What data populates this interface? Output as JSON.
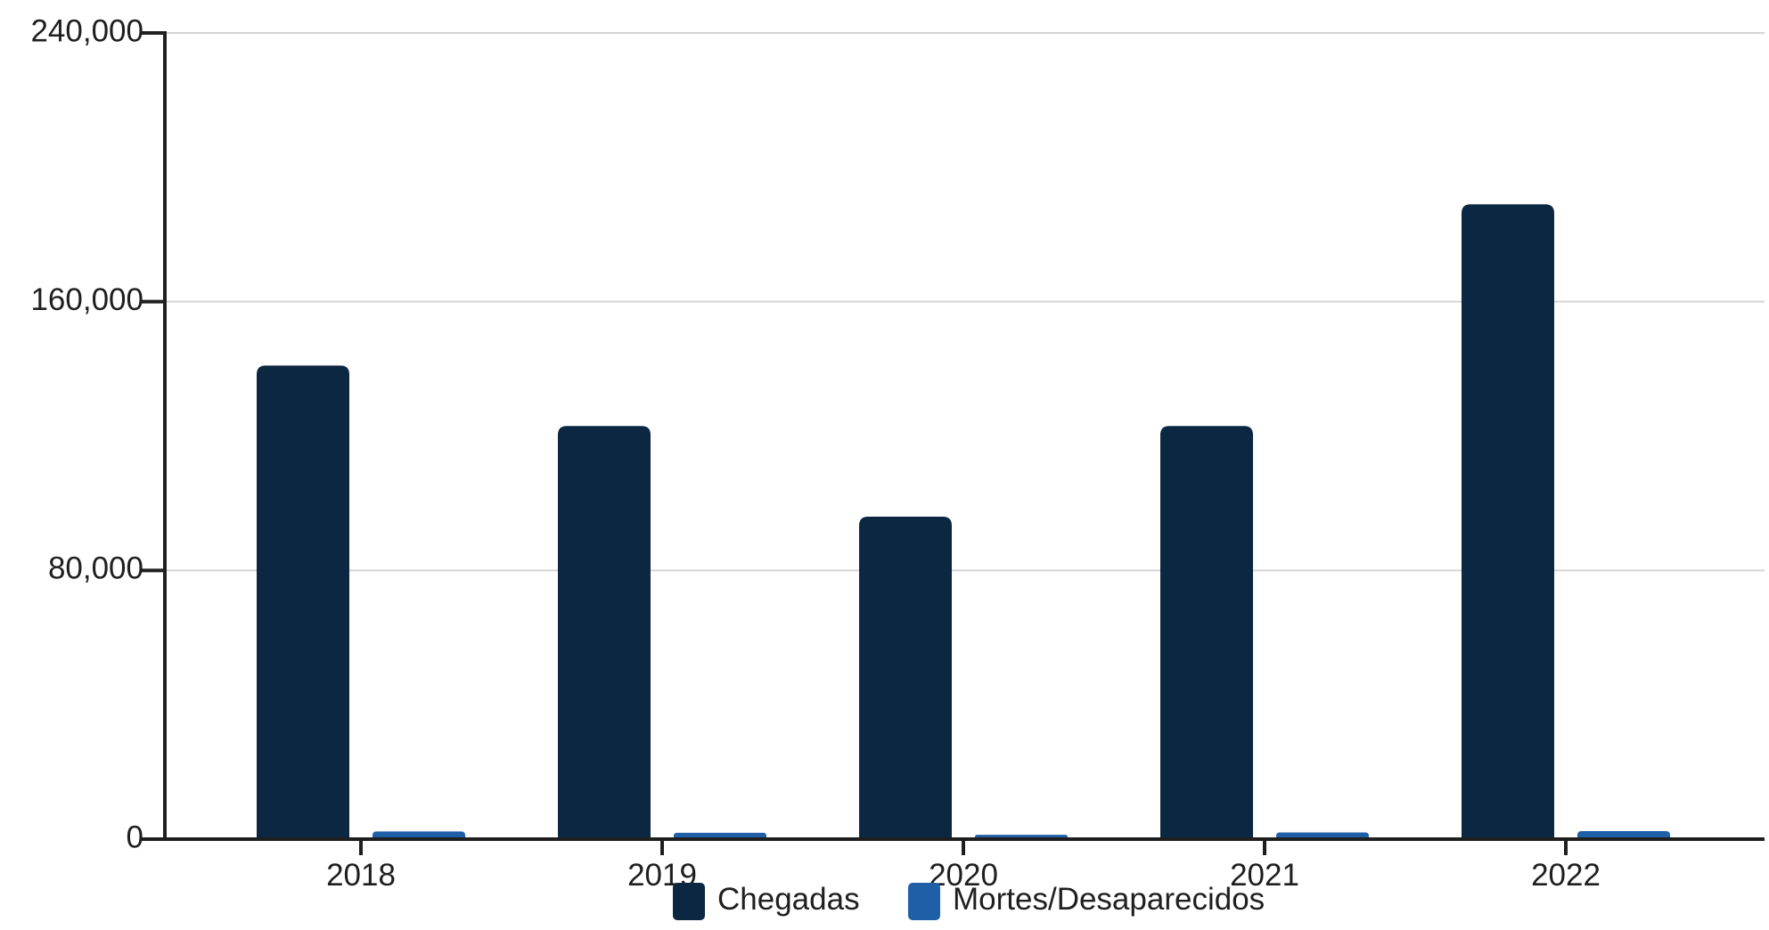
{
  "chart_data": {
    "type": "bar",
    "title": "",
    "xlabel": "",
    "ylabel": "",
    "categories": [
      "2018",
      "2019",
      "2020",
      "2021",
      "2022"
    ],
    "series": [
      {
        "name": "Chegadas",
        "color": "#0c2742",
        "values": [
          141000,
          123000,
          96000,
          123000,
          189000
        ]
      },
      {
        "name": "Mortes/Desaparecidos",
        "color": "#1f5fa8",
        "values": [
          2300,
          1900,
          1300,
          2000,
          2400
        ]
      }
    ],
    "ylim": [
      0,
      240000
    ],
    "yticks": [
      0,
      80000,
      160000,
      240000
    ],
    "ytick_labels": [
      "0",
      "80,000",
      "160,000",
      "240,000"
    ],
    "grid": true,
    "legend_position": "bottom"
  }
}
